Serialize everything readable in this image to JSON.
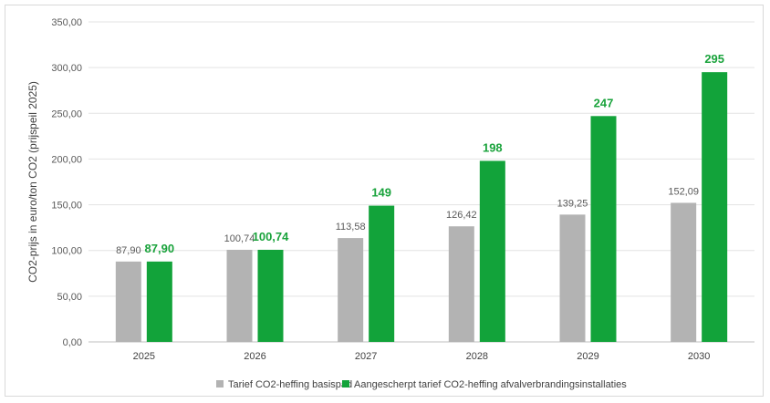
{
  "chart_data": {
    "type": "bar",
    "categories": [
      "2025",
      "2026",
      "2027",
      "2028",
      "2029",
      "2030"
    ],
    "series": [
      {
        "name": "Tarief CO2-heffing basispad",
        "values": [
          87.9,
          100.74,
          113.58,
          126.42,
          139.25,
          152.09
        ],
        "labels": [
          "87,90",
          "100,74",
          "113,58",
          "126,42",
          "139,25",
          "152,09"
        ],
        "color": "#b3b3b3"
      },
      {
        "name": "Aangescherpt tarief CO2-heffing afvalverbrandingsinstallaties",
        "values": [
          87.9,
          100.74,
          149,
          198,
          247,
          295
        ],
        "labels": [
          "87,90",
          "100,74",
          "149",
          "198",
          "247",
          "295"
        ],
        "color": "#12a33a"
      }
    ],
    "ylabel": "CO2-prijs in euro/ton CO2 (prijspeil 2025)",
    "ylim": [
      0,
      350
    ],
    "yticks": [
      "0,00",
      "50,00",
      "100,00",
      "150,00",
      "200,00",
      "250,00",
      "300,00",
      "350,00"
    ],
    "grid": true,
    "legend_position": "bottom"
  }
}
